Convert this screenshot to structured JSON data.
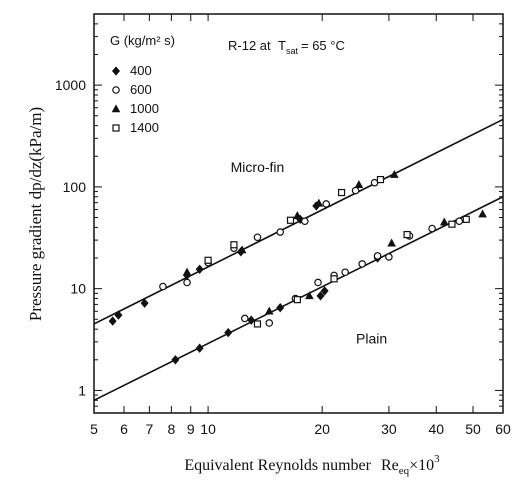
{
  "chart_data": {
    "type": "scatter",
    "xscale": "log",
    "yscale": "log",
    "xlim": [
      5,
      60
    ],
    "ylim": [
      0.6,
      5000
    ],
    "xlabel_main": "Equivalent Reynolds number",
    "xlabel_var": "Re",
    "xlabel_sub": "eq",
    "xlabel_mult": "×10",
    "xlabel_exp": "3",
    "ylabel": "Pressure gradient dp/dz(kPa/m)",
    "legend_title": "G (kg/m² s)",
    "annotation_fluid": "R-12 at",
    "annotation_T": "T",
    "annotation_T_sub": "sat",
    "annotation_T_value": "= 65 °C",
    "xtick_labels": [
      "5",
      "6",
      "7",
      "8",
      "9",
      "10",
      "20",
      "30",
      "40",
      "50",
      "60"
    ],
    "xtick_values": [
      5,
      6,
      7,
      8,
      9,
      10,
      20,
      30,
      40,
      50,
      60
    ],
    "ytick_labels": [
      "1",
      "10",
      "100",
      "1000"
    ],
    "ytick_values": [
      1,
      10,
      100,
      1000
    ],
    "series": [
      {
        "name": "400",
        "marker": "diamond-filled"
      },
      {
        "name": "600",
        "marker": "circle-open"
      },
      {
        "name": "1000",
        "marker": "triangle-filled"
      },
      {
        "name": "1400",
        "marker": "square-open"
      }
    ],
    "lines": [
      {
        "label": "Micro-fin",
        "x": [
          5,
          60
        ],
        "y": [
          4.5,
          460
        ]
      },
      {
        "label": "Plain",
        "x": [
          5,
          60
        ],
        "y": [
          0.8,
          80
        ]
      }
    ],
    "points": [
      {
        "s": 0,
        "x": 5.6,
        "y": 4.8
      },
      {
        "s": 0,
        "x": 5.8,
        "y": 5.5
      },
      {
        "s": 0,
        "x": 6.8,
        "y": 7.2
      },
      {
        "s": 0,
        "x": 8.8,
        "y": 13.5
      },
      {
        "s": 0,
        "x": 9.5,
        "y": 15.5
      },
      {
        "s": 0,
        "x": 12.2,
        "y": 23
      },
      {
        "s": 0,
        "x": 17.5,
        "y": 48
      },
      {
        "s": 0,
        "x": 19.3,
        "y": 65
      },
      {
        "s": 0,
        "x": 8.2,
        "y": 2.0
      },
      {
        "s": 0,
        "x": 9.5,
        "y": 2.6
      },
      {
        "s": 0,
        "x": 11.3,
        "y": 3.7
      },
      {
        "s": 0,
        "x": 13.0,
        "y": 4.9
      },
      {
        "s": 0,
        "x": 15.5,
        "y": 6.5
      },
      {
        "s": 0,
        "x": 19.8,
        "y": 8.5
      },
      {
        "s": 0,
        "x": 20.3,
        "y": 9.5
      },
      {
        "s": 0,
        "x": 28.0,
        "y": 20.0
      },
      {
        "s": 1,
        "x": 7.6,
        "y": 10.5
      },
      {
        "s": 1,
        "x": 8.8,
        "y": 11.5
      },
      {
        "s": 1,
        "x": 10.0,
        "y": 18
      },
      {
        "s": 1,
        "x": 11.7,
        "y": 25
      },
      {
        "s": 1,
        "x": 13.5,
        "y": 32
      },
      {
        "s": 1,
        "x": 15.5,
        "y": 36
      },
      {
        "s": 1,
        "x": 18.0,
        "y": 46
      },
      {
        "s": 1,
        "x": 20.5,
        "y": 68
      },
      {
        "s": 1,
        "x": 24.5,
        "y": 92
      },
      {
        "s": 1,
        "x": 27.5,
        "y": 110
      },
      {
        "s": 1,
        "x": 12.5,
        "y": 5.1
      },
      {
        "s": 1,
        "x": 14.5,
        "y": 4.6
      },
      {
        "s": 1,
        "x": 17.0,
        "y": 8.0
      },
      {
        "s": 1,
        "x": 19.5,
        "y": 11.5
      },
      {
        "s": 1,
        "x": 21.5,
        "y": 13.5
      },
      {
        "s": 1,
        "x": 23.0,
        "y": 14.5
      },
      {
        "s": 1,
        "x": 25.5,
        "y": 17.5
      },
      {
        "s": 1,
        "x": 28.0,
        "y": 21
      },
      {
        "s": 1,
        "x": 30.0,
        "y": 20.5
      },
      {
        "s": 1,
        "x": 34.0,
        "y": 33
      },
      {
        "s": 1,
        "x": 39.0,
        "y": 39
      },
      {
        "s": 1,
        "x": 46.0,
        "y": 46
      },
      {
        "s": 2,
        "x": 8.8,
        "y": 14.5
      },
      {
        "s": 2,
        "x": 12.3,
        "y": 24
      },
      {
        "s": 2,
        "x": 17.2,
        "y": 52
      },
      {
        "s": 2,
        "x": 19.6,
        "y": 69
      },
      {
        "s": 2,
        "x": 25.0,
        "y": 105
      },
      {
        "s": 2,
        "x": 31.0,
        "y": 132
      },
      {
        "s": 2,
        "x": 14.5,
        "y": 6.0
      },
      {
        "s": 2,
        "x": 18.5,
        "y": 8.5
      },
      {
        "s": 2,
        "x": 30.5,
        "y": 28
      },
      {
        "s": 2,
        "x": 42.0,
        "y": 45
      },
      {
        "s": 2,
        "x": 53.0,
        "y": 54
      },
      {
        "s": 3,
        "x": 10.0,
        "y": 19
      },
      {
        "s": 3,
        "x": 11.7,
        "y": 27
      },
      {
        "s": 3,
        "x": 16.5,
        "y": 47
      },
      {
        "s": 3,
        "x": 22.5,
        "y": 88
      },
      {
        "s": 3,
        "x": 28.5,
        "y": 118
      },
      {
        "s": 3,
        "x": 13.5,
        "y": 4.5
      },
      {
        "s": 3,
        "x": 17.2,
        "y": 7.8
      },
      {
        "s": 3,
        "x": 21.5,
        "y": 12.5
      },
      {
        "s": 3,
        "x": 33.5,
        "y": 34
      },
      {
        "s": 3,
        "x": 44.0,
        "y": 43
      },
      {
        "s": 3,
        "x": 48.0,
        "y": 48
      }
    ]
  }
}
